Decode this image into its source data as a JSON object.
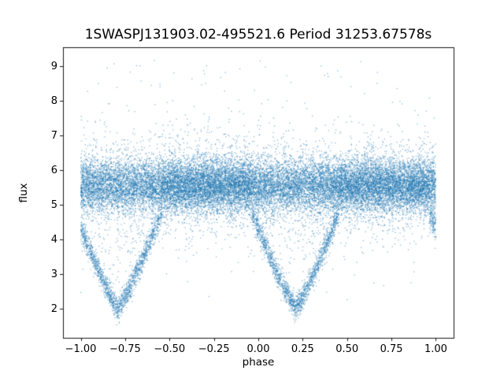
{
  "chart_data": {
    "type": "scatter",
    "title": "1SWASPJ131903.02-495521.6 Period 31253.67578s",
    "xlabel": "phase",
    "ylabel": "flux",
    "xlim": [
      -1.1,
      1.1
    ],
    "ylim": [
      1.15,
      9.55
    ],
    "xticks": [
      -1.0,
      -0.75,
      -0.5,
      -0.25,
      0.0,
      0.25,
      0.5,
      0.75,
      1.0
    ],
    "xtick_labels": [
      "−1.00",
      "−0.75",
      "−0.50",
      "−0.25",
      "0.00",
      "0.25",
      "0.50",
      "0.75",
      "1.00"
    ],
    "yticks": [
      2,
      3,
      4,
      5,
      6,
      7,
      8,
      9
    ],
    "ytick_labels": [
      "2",
      "3",
      "4",
      "5",
      "6",
      "7",
      "8",
      "9"
    ],
    "grid": false,
    "legend": "none",
    "marker": {
      "color": "#1f77b4",
      "size": 1.3,
      "alpha": 0.5
    },
    "n_points": 26000,
    "seed": 7,
    "model": {
      "description": "Phase-folded eclipsing-binary light curve: dense flat baseline band across all phases with two deep V-shaped eclipse dips; sparse outliers above and below the band.",
      "baseline": {
        "mean_flux": 5.55,
        "sigma": 0.38,
        "wide_sigma": 0.78,
        "wide_fraction": 0.15
      },
      "eclipses": {
        "centers_phase": [
          -0.79,
          0.21,
          1.21
        ],
        "half_width_phase": 0.245,
        "min_flux": 2.0,
        "contact_flux": 4.75,
        "point_prob": 0.3,
        "arm_exponent": 1.15,
        "arm_sigma": 0.17,
        "gap_fill_prob": 0.04
      },
      "outliers": {
        "high_prob": 0.004,
        "high_flux_range": [
          6.6,
          9.2
        ],
        "low_prob": 0.002,
        "low_flux_range": [
          2.2,
          4.6
        ]
      }
    }
  }
}
